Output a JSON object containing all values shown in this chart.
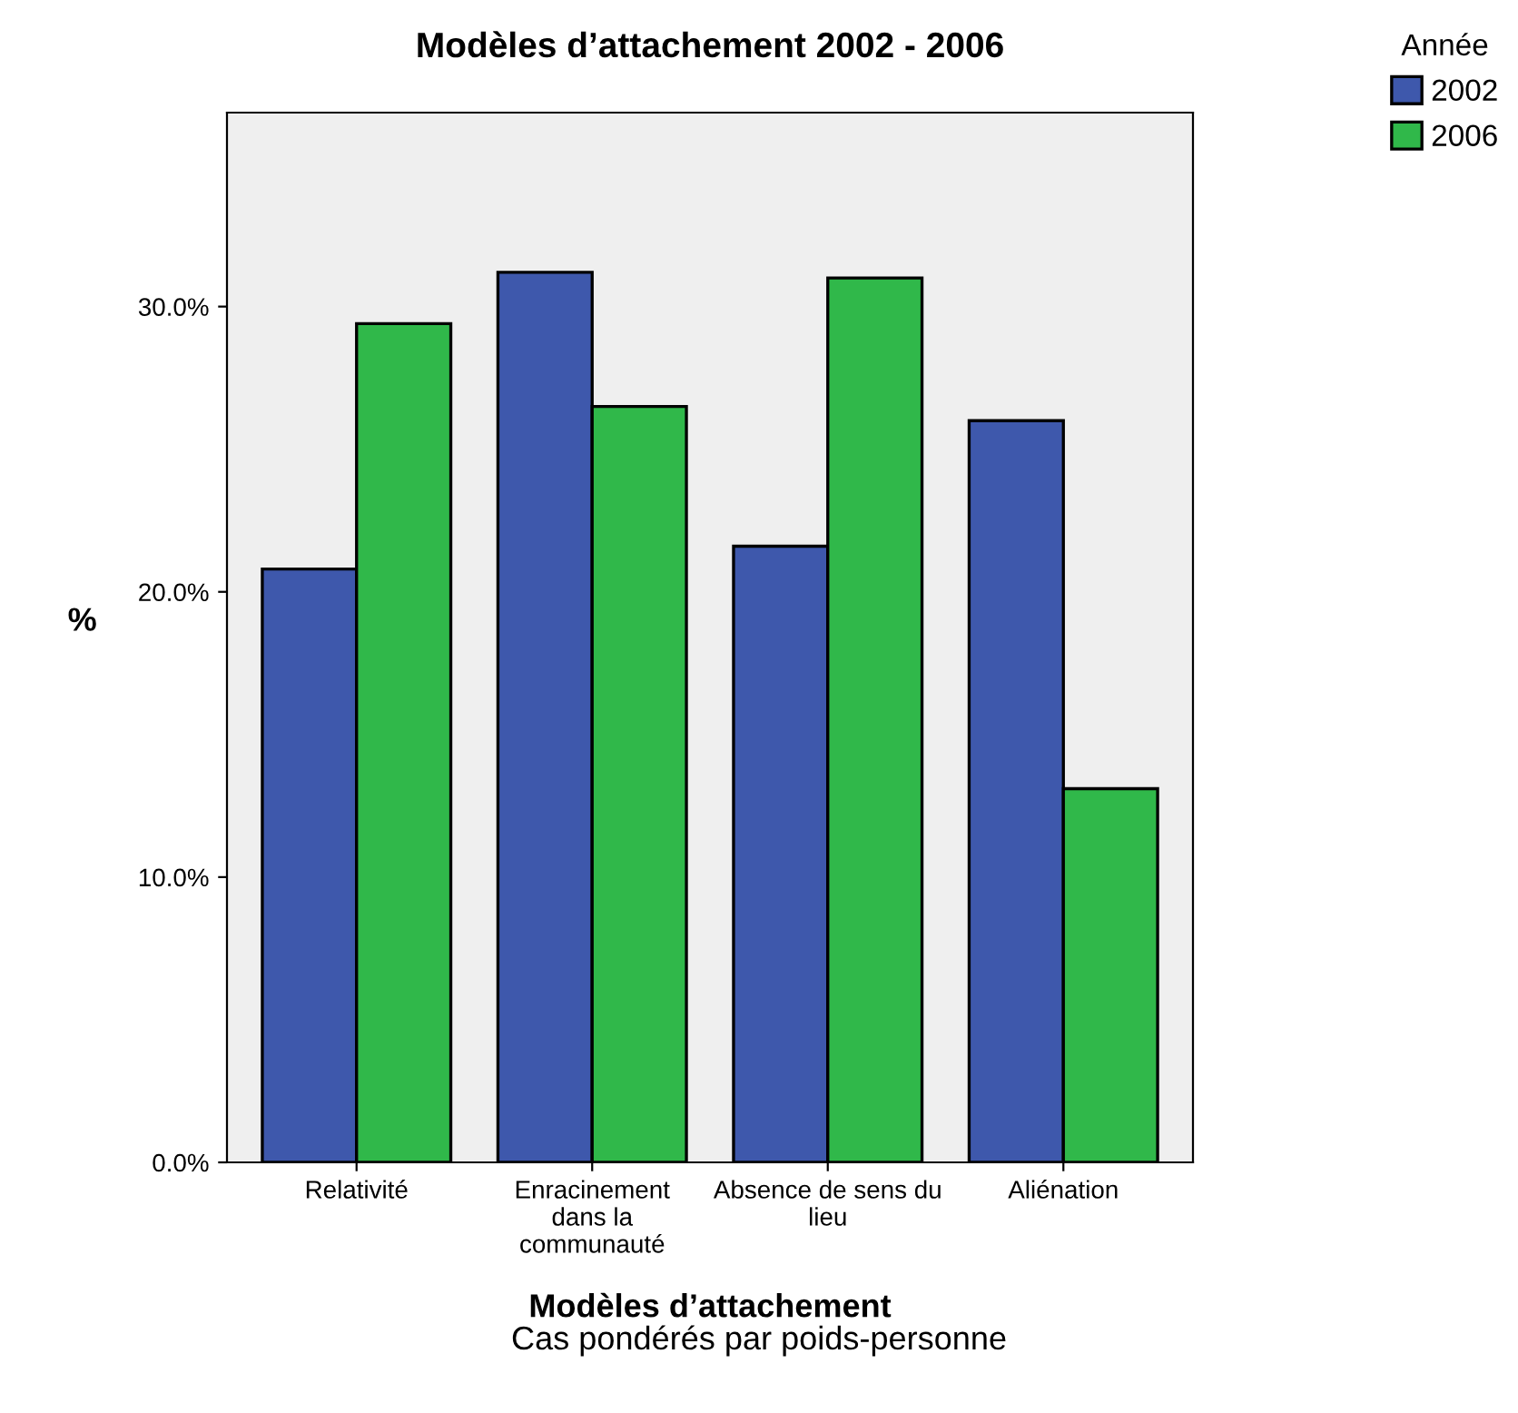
{
  "chart_data": {
    "type": "bar",
    "title": "Modèles d’attachement 2002 - 2006",
    "xlabel": "Modèles d’attachement",
    "ylabel": "%",
    "legend_title": "Année",
    "annotations": [
      "Cas pondérés par poids-personne"
    ],
    "categories": [
      "Relativité",
      "Enracinement\ndans la\ncommunauté",
      "Absence de sens du\nlieu",
      "Aliénation"
    ],
    "series": [
      {
        "name": "2002",
        "color": "#3e58ac",
        "values": [
          20.8,
          31.2,
          21.6,
          26.0
        ]
      },
      {
        "name": "2006",
        "color": "#30b84a",
        "values": [
          29.4,
          26.5,
          31.0,
          13.1
        ]
      }
    ],
    "ylim": [
      0,
      36.8
    ],
    "yticks": [
      {
        "value": 0,
        "label": "0.0%"
      },
      {
        "value": 10,
        "label": "10.0%"
      },
      {
        "value": 20,
        "label": "20.0%"
      },
      {
        "value": 30,
        "label": "30.0%"
      }
    ],
    "grid": false,
    "legend": "top right"
  }
}
